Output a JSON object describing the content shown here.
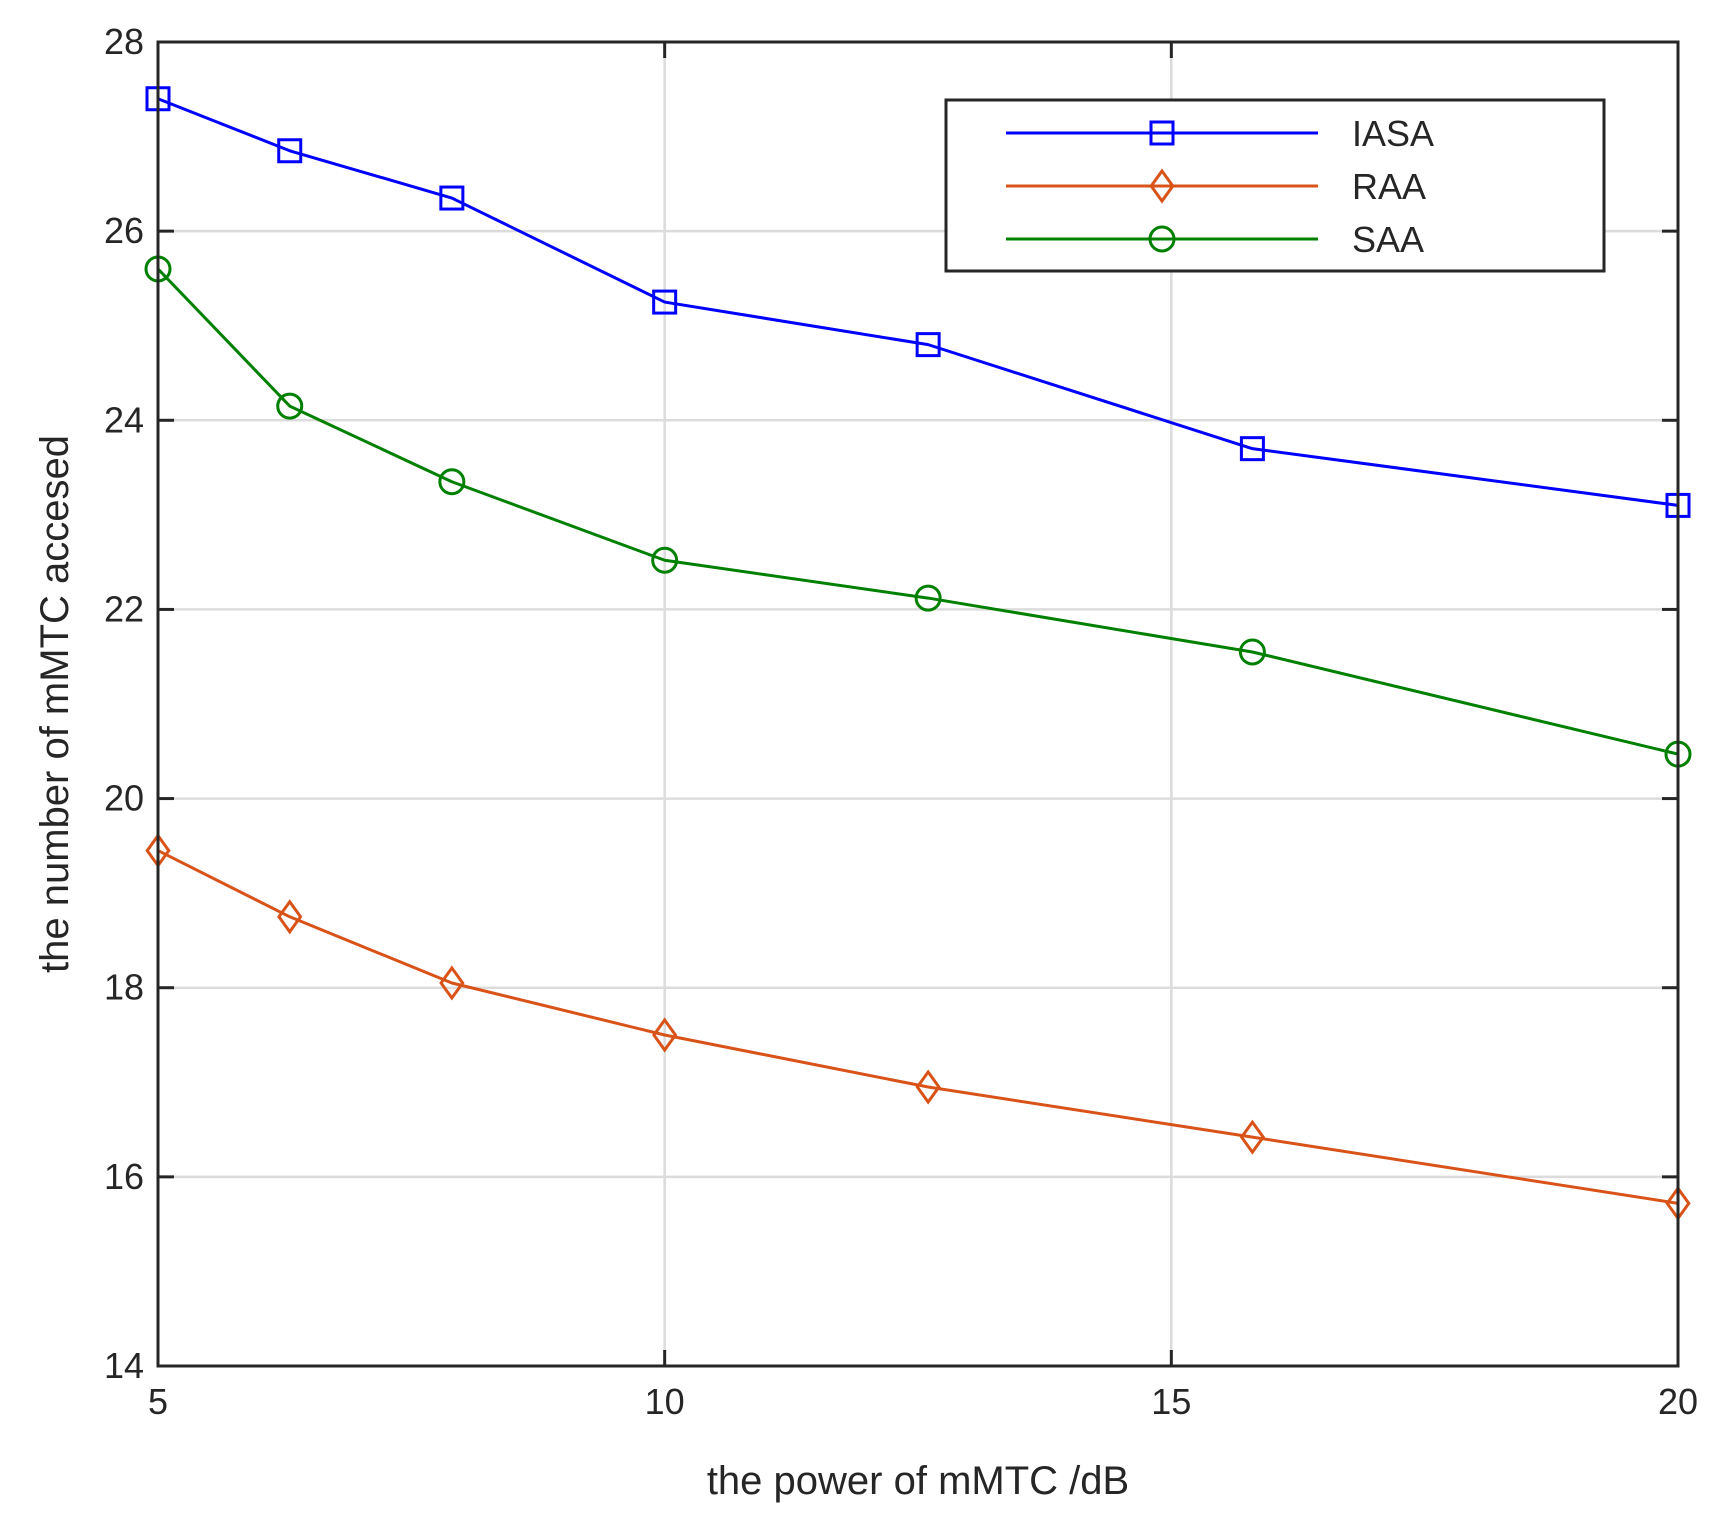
{
  "chart_data": {
    "type": "line",
    "title": "",
    "xlabel": "the power of mMTC /dB",
    "ylabel": "the number of mMTC accesed",
    "xlim": [
      5,
      20
    ],
    "ylim": [
      14,
      28
    ],
    "xticks": [
      5,
      10,
      15,
      20
    ],
    "yticks": [
      14,
      16,
      18,
      20,
      22,
      24,
      26,
      28
    ],
    "grid": true,
    "legend_position": "top-right",
    "x": [
      5,
      6.3,
      7.9,
      10,
      12.6,
      15.8,
      20
    ],
    "series": [
      {
        "name": "IASA",
        "color": "#0000ff",
        "marker": "square",
        "values": [
          27.4,
          26.85,
          26.35,
          25.25,
          24.8,
          23.7,
          23.1
        ]
      },
      {
        "name": "RAA",
        "color": "#d95319",
        "marker": "diamond",
        "values": [
          19.45,
          18.75,
          18.05,
          17.5,
          16.95,
          16.42,
          15.72
        ]
      },
      {
        "name": "SAA",
        "color": "#008000",
        "marker": "circle",
        "values": [
          25.6,
          24.15,
          23.35,
          22.52,
          22.12,
          21.55,
          20.47
        ]
      }
    ]
  }
}
